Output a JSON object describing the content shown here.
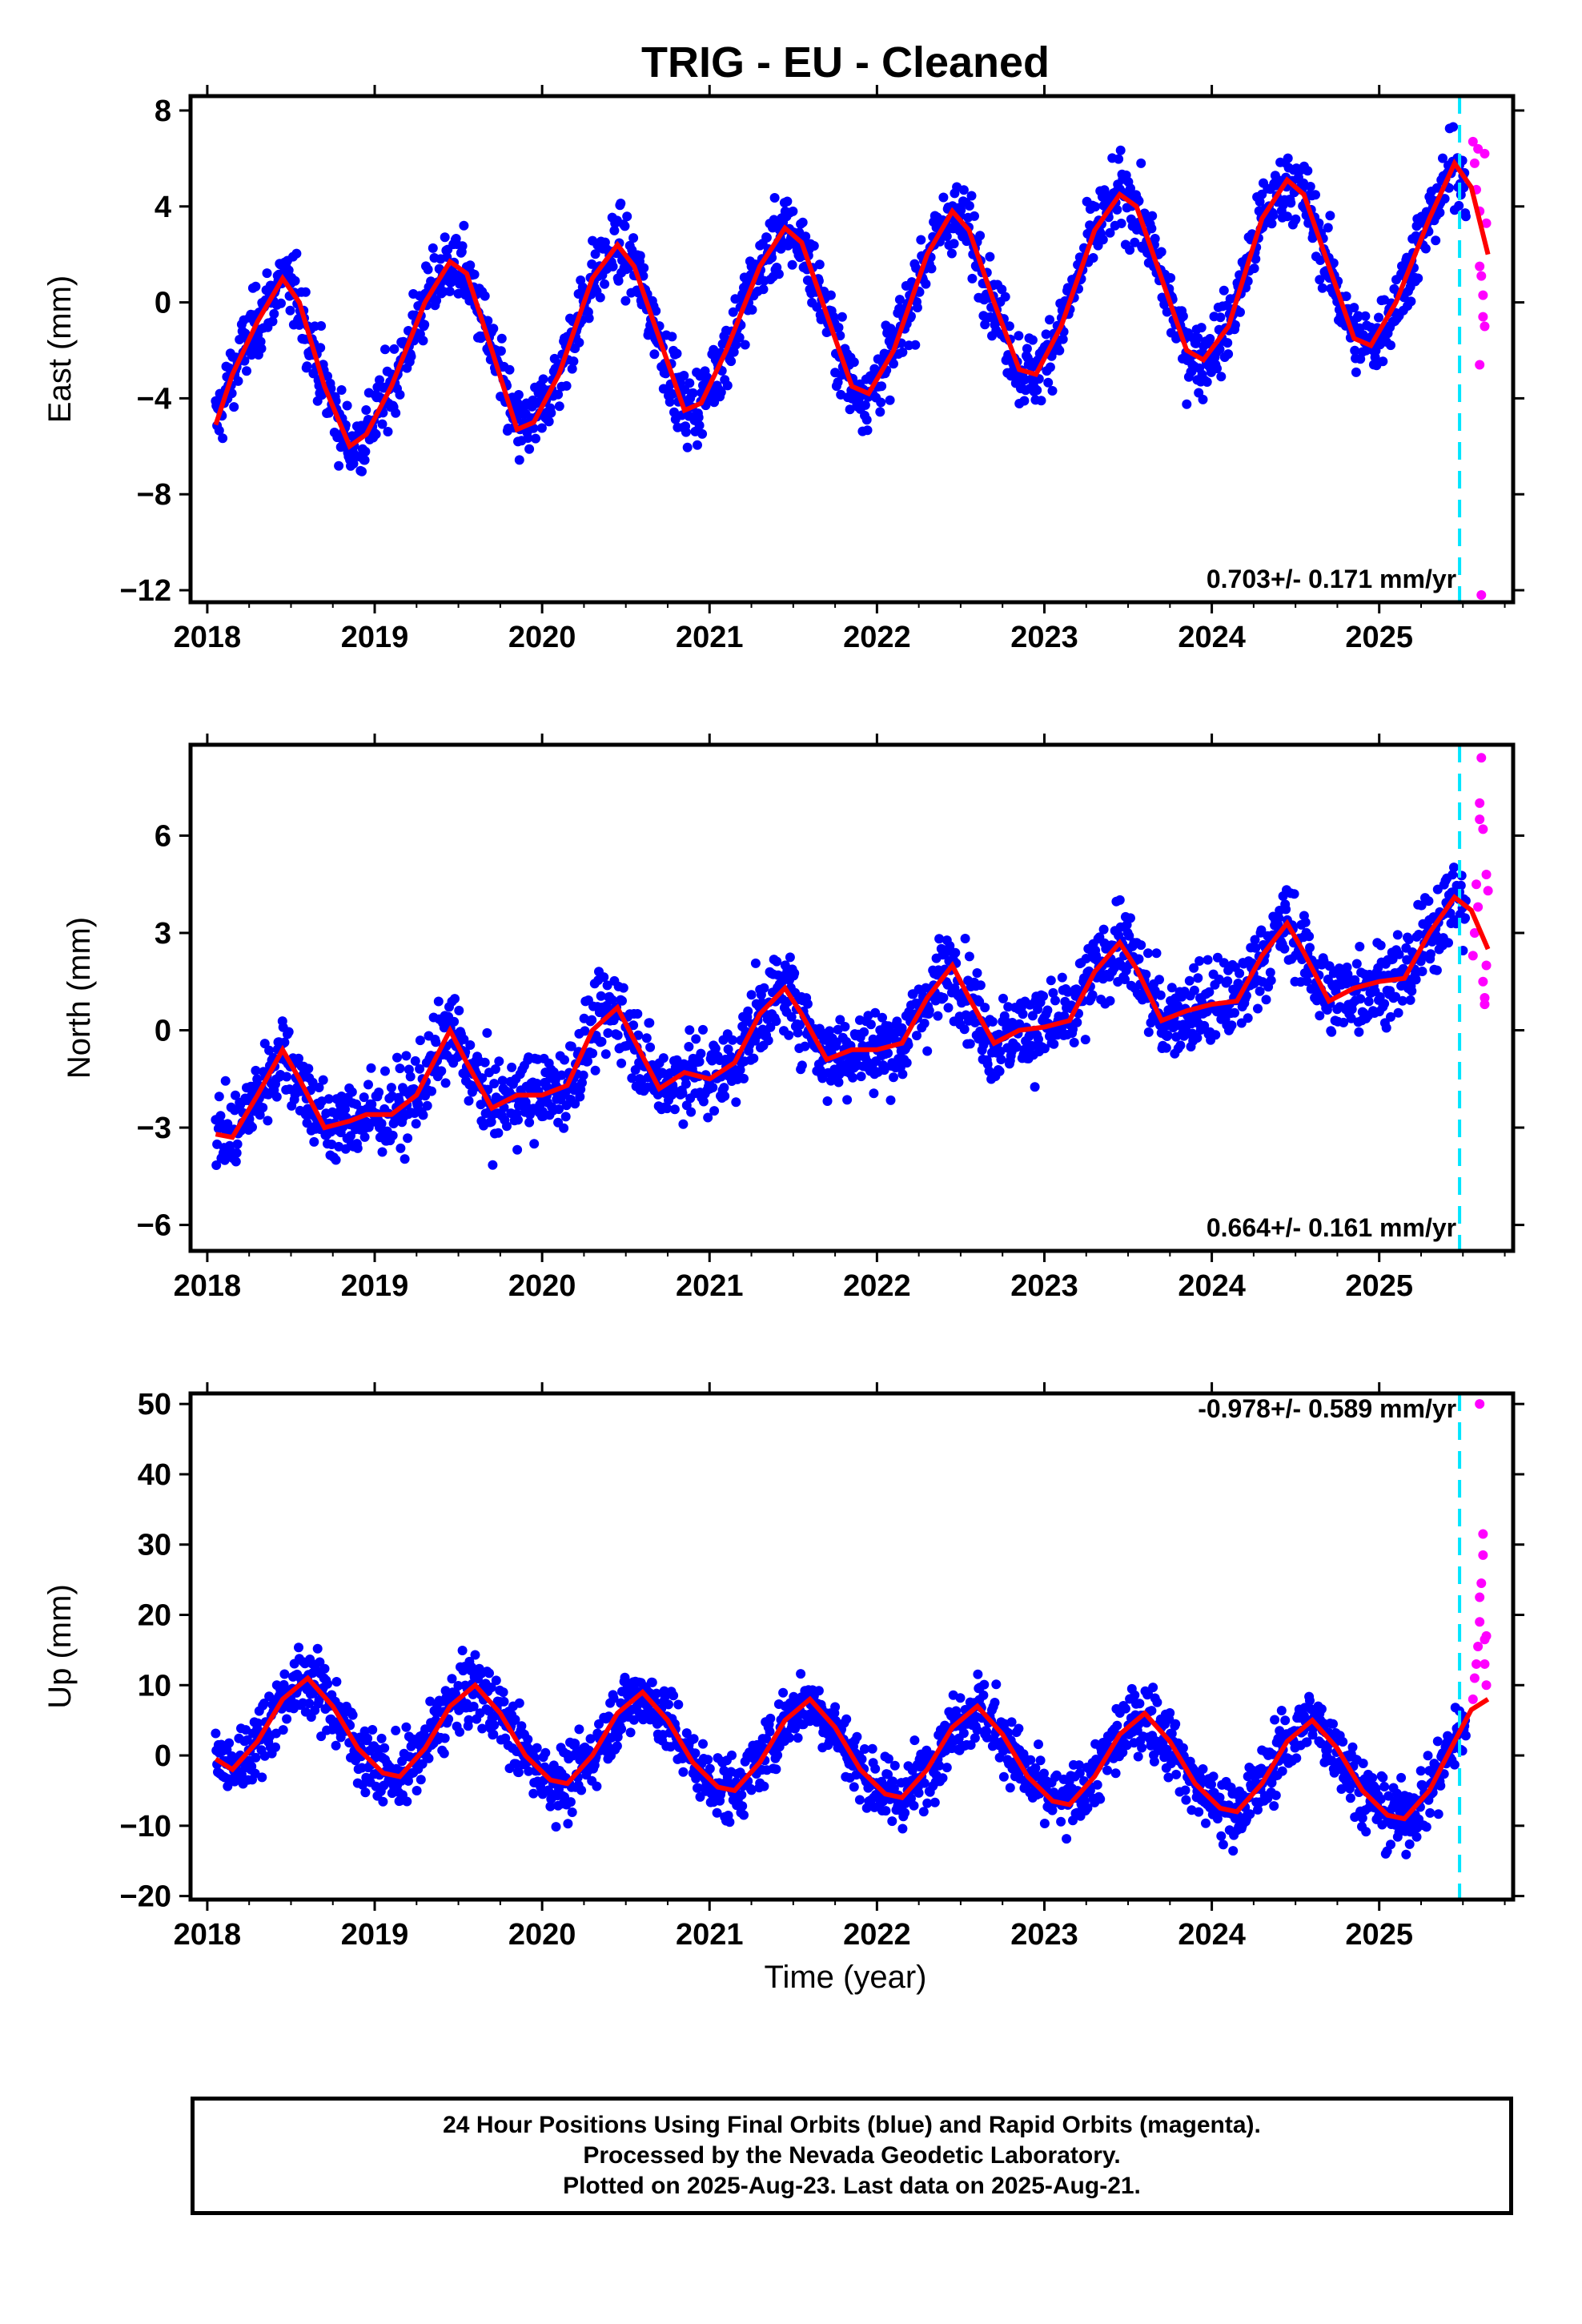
{
  "title": "TRIG  - EU - Cleaned",
  "xlabel": "Time (year)",
  "footer": {
    "line1": "24 Hour Positions Using Final Orbits (blue) and Rapid Orbits (magenta).",
    "line2": "Processed by the Nevada Geodetic Laboratory.",
    "line3": "Plotted on 2025-Aug-23. Last data on 2025-Aug-21."
  },
  "colors": {
    "final": "#0000ff",
    "rapid": "#ff00ff",
    "model": "#ff0000",
    "marker": "#00e5ff"
  },
  "chart_data": [
    {
      "type": "scatter",
      "component": "east",
      "ylabel": "East (mm)",
      "rate_label": "0.703+/- 0.171 mm/yr",
      "xlim": [
        2017.9,
        2025.8
      ],
      "ylim": [
        -12.5,
        8.6
      ],
      "yticks": [
        8,
        4,
        0,
        -4,
        -8,
        -12
      ],
      "xticks": [
        2018,
        2019,
        2020,
        2021,
        2022,
        2023,
        2024,
        2025
      ],
      "vline_x": 2025.48,
      "model": [
        [
          2018.05,
          -5.1
        ],
        [
          2018.15,
          -3.0
        ],
        [
          2018.3,
          -0.8
        ],
        [
          2018.45,
          1.0
        ],
        [
          2018.55,
          0.0
        ],
        [
          2018.7,
          -3.5
        ],
        [
          2018.85,
          -6.0
        ],
        [
          2018.95,
          -5.5
        ],
        [
          2019.1,
          -3.5
        ],
        [
          2019.3,
          0.0
        ],
        [
          2019.45,
          1.7
        ],
        [
          2019.55,
          1.2
        ],
        [
          2019.7,
          -2.0
        ],
        [
          2019.85,
          -5.3
        ],
        [
          2019.95,
          -5.0
        ],
        [
          2020.1,
          -3.0
        ],
        [
          2020.3,
          1.0
        ],
        [
          2020.45,
          2.4
        ],
        [
          2020.55,
          1.5
        ],
        [
          2020.7,
          -1.5
        ],
        [
          2020.85,
          -4.5
        ],
        [
          2020.95,
          -4.2
        ],
        [
          2021.1,
          -2.0
        ],
        [
          2021.3,
          1.5
        ],
        [
          2021.45,
          3.1
        ],
        [
          2021.55,
          2.5
        ],
        [
          2021.7,
          -0.5
        ],
        [
          2021.85,
          -3.5
        ],
        [
          2021.95,
          -3.8
        ],
        [
          2022.1,
          -2.0
        ],
        [
          2022.3,
          2.0
        ],
        [
          2022.45,
          3.8
        ],
        [
          2022.55,
          3.0
        ],
        [
          2022.7,
          0.0
        ],
        [
          2022.85,
          -2.8
        ],
        [
          2022.95,
          -3.0
        ],
        [
          2023.1,
          -1.0
        ],
        [
          2023.3,
          3.0
        ],
        [
          2023.45,
          4.5
        ],
        [
          2023.55,
          4.0
        ],
        [
          2023.7,
          1.0
        ],
        [
          2023.85,
          -2.0
        ],
        [
          2023.95,
          -2.4
        ],
        [
          2024.1,
          -1.0
        ],
        [
          2024.3,
          3.5
        ],
        [
          2024.45,
          5.1
        ],
        [
          2024.55,
          4.5
        ],
        [
          2024.7,
          1.5
        ],
        [
          2024.85,
          -1.5
        ],
        [
          2024.95,
          -1.8
        ],
        [
          2025.1,
          0.0
        ],
        [
          2025.3,
          3.5
        ],
        [
          2025.45,
          5.8
        ],
        [
          2025.55,
          4.8
        ],
        [
          2025.65,
          2.0
        ]
      ],
      "rapid": [
        [
          2025.56,
          6.7
        ],
        [
          2025.57,
          5.8
        ],
        [
          2025.58,
          4.7
        ],
        [
          2025.59,
          6.4
        ],
        [
          2025.6,
          3.8
        ],
        [
          2025.6,
          1.5
        ],
        [
          2025.61,
          1.1
        ],
        [
          2025.62,
          0.3
        ],
        [
          2025.62,
          -0.6
        ],
        [
          2025.63,
          -1.0
        ],
        [
          2025.63,
          6.2
        ],
        [
          2025.64,
          3.3
        ],
        [
          2025.6,
          -2.6
        ],
        [
          2025.61,
          -12.2
        ]
      ]
    },
    {
      "type": "scatter",
      "component": "north",
      "ylabel": "North (mm)",
      "rate_label": "0.664+/- 0.161 mm/yr",
      "xlim": [
        2017.9,
        2025.8
      ],
      "ylim": [
        -6.8,
        8.8
      ],
      "yticks": [
        6,
        3,
        0,
        -3,
        -6
      ],
      "xticks": [
        2018,
        2019,
        2020,
        2021,
        2022,
        2023,
        2024,
        2025
      ],
      "vline_x": 2025.48,
      "model": [
        [
          2018.05,
          -3.2
        ],
        [
          2018.15,
          -3.3
        ],
        [
          2018.3,
          -2.0
        ],
        [
          2018.45,
          -0.6
        ],
        [
          2018.55,
          -1.5
        ],
        [
          2018.7,
          -3.0
        ],
        [
          2018.85,
          -2.8
        ],
        [
          2018.95,
          -2.6
        ],
        [
          2019.1,
          -2.6
        ],
        [
          2019.25,
          -2.0
        ],
        [
          2019.45,
          0.0
        ],
        [
          2019.55,
          -1.0
        ],
        [
          2019.7,
          -2.4
        ],
        [
          2019.85,
          -2.0
        ],
        [
          2020.0,
          -2.0
        ],
        [
          2020.15,
          -1.7
        ],
        [
          2020.3,
          0.0
        ],
        [
          2020.45,
          0.7
        ],
        [
          2020.55,
          -0.3
        ],
        [
          2020.7,
          -1.8
        ],
        [
          2020.85,
          -1.3
        ],
        [
          2021.0,
          -1.5
        ],
        [
          2021.15,
          -1.0
        ],
        [
          2021.3,
          0.5
        ],
        [
          2021.45,
          1.3
        ],
        [
          2021.55,
          0.5
        ],
        [
          2021.7,
          -0.9
        ],
        [
          2021.85,
          -0.6
        ],
        [
          2022.0,
          -0.6
        ],
        [
          2022.15,
          -0.4
        ],
        [
          2022.3,
          1.0
        ],
        [
          2022.45,
          2.0
        ],
        [
          2022.55,
          1.0
        ],
        [
          2022.7,
          -0.4
        ],
        [
          2022.85,
          0.0
        ],
        [
          2023.0,
          0.1
        ],
        [
          2023.15,
          0.3
        ],
        [
          2023.3,
          1.8
        ],
        [
          2023.45,
          2.7
        ],
        [
          2023.55,
          1.9
        ],
        [
          2023.7,
          0.3
        ],
        [
          2023.85,
          0.6
        ],
        [
          2024.0,
          0.8
        ],
        [
          2024.15,
          0.9
        ],
        [
          2024.3,
          2.3
        ],
        [
          2024.45,
          3.3
        ],
        [
          2024.55,
          2.4
        ],
        [
          2024.7,
          0.9
        ],
        [
          2024.85,
          1.3
        ],
        [
          2025.0,
          1.5
        ],
        [
          2025.15,
          1.6
        ],
        [
          2025.3,
          3.0
        ],
        [
          2025.45,
          4.1
        ],
        [
          2025.55,
          3.7
        ],
        [
          2025.65,
          2.5
        ]
      ],
      "rapid": [
        [
          2025.56,
          2.3
        ],
        [
          2025.57,
          3.0
        ],
        [
          2025.58,
          4.5
        ],
        [
          2025.59,
          3.8
        ],
        [
          2025.6,
          6.5
        ],
        [
          2025.6,
          7.0
        ],
        [
          2025.61,
          8.4
        ],
        [
          2025.62,
          6.2
        ],
        [
          2025.62,
          1.5
        ],
        [
          2025.63,
          0.8
        ],
        [
          2025.63,
          1.0
        ],
        [
          2025.64,
          2.0
        ],
        [
          2025.64,
          4.8
        ],
        [
          2025.65,
          4.3
        ]
      ]
    },
    {
      "type": "scatter",
      "component": "up",
      "ylabel": "Up (mm)",
      "rate_label": "-0.978+/- 0.589 mm/yr",
      "xlim": [
        2017.9,
        2025.8
      ],
      "ylim": [
        -20.5,
        51.5
      ],
      "yticks": [
        50,
        40,
        30,
        20,
        10,
        0,
        -10,
        -20
      ],
      "xticks": [
        2018,
        2019,
        2020,
        2021,
        2022,
        2023,
        2024,
        2025
      ],
      "vline_x": 2025.48,
      "model": [
        [
          2018.05,
          -0.5
        ],
        [
          2018.15,
          -2.0
        ],
        [
          2018.3,
          2.0
        ],
        [
          2018.45,
          8.0
        ],
        [
          2018.6,
          11.0
        ],
        [
          2018.75,
          7.0
        ],
        [
          2018.9,
          1.0
        ],
        [
          2019.05,
          -2.5
        ],
        [
          2019.15,
          -3.0
        ],
        [
          2019.3,
          1.0
        ],
        [
          2019.45,
          7.0
        ],
        [
          2019.6,
          10.0
        ],
        [
          2019.75,
          6.0
        ],
        [
          2019.9,
          0.0
        ],
        [
          2020.05,
          -3.5
        ],
        [
          2020.15,
          -4.0
        ],
        [
          2020.3,
          0.0
        ],
        [
          2020.45,
          6.0
        ],
        [
          2020.6,
          9.0
        ],
        [
          2020.75,
          5.0
        ],
        [
          2020.9,
          -1.0
        ],
        [
          2021.05,
          -4.5
        ],
        [
          2021.15,
          -5.0
        ],
        [
          2021.3,
          -1.0
        ],
        [
          2021.45,
          5.0
        ],
        [
          2021.6,
          8.0
        ],
        [
          2021.75,
          4.0
        ],
        [
          2021.9,
          -2.0
        ],
        [
          2022.05,
          -5.5
        ],
        [
          2022.15,
          -6.0
        ],
        [
          2022.3,
          -2.0
        ],
        [
          2022.45,
          4.0
        ],
        [
          2022.6,
          7.0
        ],
        [
          2022.75,
          3.0
        ],
        [
          2022.9,
          -3.0
        ],
        [
          2023.05,
          -6.5
        ],
        [
          2023.15,
          -7.0
        ],
        [
          2023.3,
          -3.0
        ],
        [
          2023.45,
          3.0
        ],
        [
          2023.6,
          6.0
        ],
        [
          2023.75,
          2.0
        ],
        [
          2023.9,
          -4.0
        ],
        [
          2024.05,
          -7.5
        ],
        [
          2024.15,
          -8.0
        ],
        [
          2024.3,
          -4.0
        ],
        [
          2024.45,
          2.0
        ],
        [
          2024.6,
          5.0
        ],
        [
          2024.75,
          1.0
        ],
        [
          2024.9,
          -5.0
        ],
        [
          2025.05,
          -8.5
        ],
        [
          2025.15,
          -9.0
        ],
        [
          2025.3,
          -5.0
        ],
        [
          2025.45,
          2.0
        ],
        [
          2025.55,
          6.5
        ],
        [
          2025.65,
          8.0
        ]
      ],
      "rapid": [
        [
          2025.56,
          8.0
        ],
        [
          2025.57,
          11.0
        ],
        [
          2025.58,
          13.0
        ],
        [
          2025.59,
          15.5
        ],
        [
          2025.6,
          19.0
        ],
        [
          2025.6,
          22.5
        ],
        [
          2025.61,
          24.5
        ],
        [
          2025.62,
          28.5
        ],
        [
          2025.62,
          31.5
        ],
        [
          2025.63,
          16.5
        ],
        [
          2025.63,
          13.0
        ],
        [
          2025.64,
          10.0
        ],
        [
          2025.64,
          17.0
        ],
        [
          2025.6,
          50.0
        ]
      ]
    }
  ]
}
